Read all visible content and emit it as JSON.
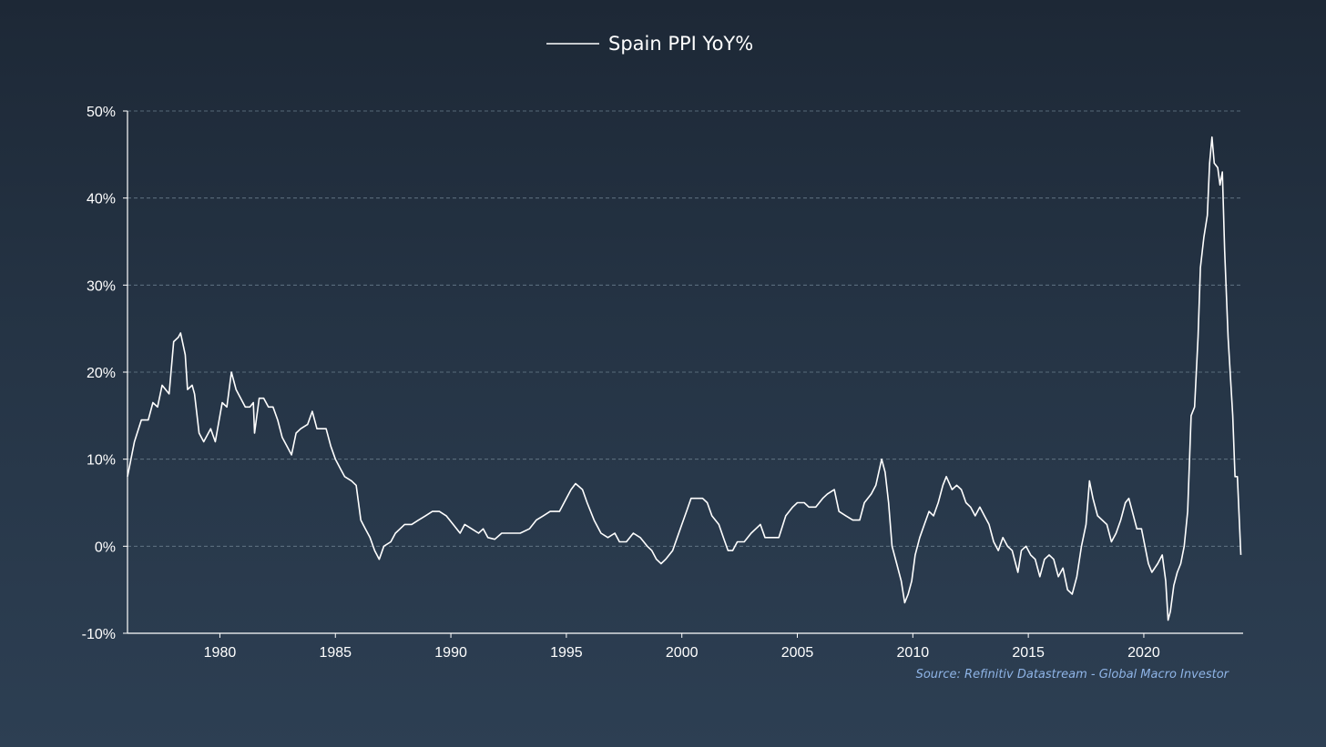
{
  "colors": {
    "line": "#ffffff",
    "grid": "#6a7d8c",
    "axis": "#ffffff",
    "source": "#8fb4e6"
  },
  "legend": {
    "label": "Spain PPI YoY%"
  },
  "source": "Source: Refinitiv Datastream - Global Macro Investor",
  "chart_data": {
    "type": "line",
    "title": "",
    "xlabel": "",
    "ylabel": "",
    "xlim": [
      1976.0,
      2024.3
    ],
    "ylim": [
      -10,
      50
    ],
    "grid": "horizontal-dashed",
    "legend_position": "top-center",
    "x_ticks": [
      {
        "value": 1980,
        "label": "1980"
      },
      {
        "value": 1985,
        "label": "1985"
      },
      {
        "value": 1990,
        "label": "1990"
      },
      {
        "value": 1995,
        "label": "1995"
      },
      {
        "value": 2000,
        "label": "2000"
      },
      {
        "value": 2005,
        "label": "2005"
      },
      {
        "value": 2010,
        "label": "2010"
      },
      {
        "value": 2015,
        "label": "2015"
      },
      {
        "value": 2020,
        "label": "2020"
      }
    ],
    "y_ticks": [
      {
        "value": 50,
        "label": "50%"
      },
      {
        "value": 40,
        "label": "40%"
      },
      {
        "value": 30,
        "label": "30%"
      },
      {
        "value": 20,
        "label": "20%"
      },
      {
        "value": 10,
        "label": "10%"
      },
      {
        "value": 0,
        "label": "0%"
      },
      {
        "value": -10,
        "label": "-10%"
      }
    ],
    "series": [
      {
        "name": "Spain PPI YoY%",
        "points": [
          [
            1976.0,
            8.0
          ],
          [
            1976.3,
            12.0
          ],
          [
            1976.6,
            14.5
          ],
          [
            1976.9,
            14.5
          ],
          [
            1977.1,
            16.5
          ],
          [
            1977.3,
            16.0
          ],
          [
            1977.5,
            18.5
          ],
          [
            1977.8,
            17.5
          ],
          [
            1978.0,
            23.5
          ],
          [
            1978.2,
            24.0
          ],
          [
            1978.3,
            24.5
          ],
          [
            1978.5,
            22.0
          ],
          [
            1978.6,
            18.0
          ],
          [
            1978.8,
            18.5
          ],
          [
            1978.9,
            17.5
          ],
          [
            1979.1,
            13.0
          ],
          [
            1979.3,
            12.0
          ],
          [
            1979.6,
            13.5
          ],
          [
            1979.8,
            12.0
          ],
          [
            1980.1,
            16.5
          ],
          [
            1980.3,
            16.0
          ],
          [
            1980.5,
            20.0
          ],
          [
            1980.7,
            18.0
          ],
          [
            1980.9,
            17.0
          ],
          [
            1981.1,
            16.0
          ],
          [
            1981.3,
            16.0
          ],
          [
            1981.45,
            16.5
          ],
          [
            1981.5,
            13.0
          ],
          [
            1981.7,
            17.0
          ],
          [
            1981.9,
            17.0
          ],
          [
            1982.1,
            16.0
          ],
          [
            1982.3,
            16.0
          ],
          [
            1982.5,
            14.5
          ],
          [
            1982.7,
            12.5
          ],
          [
            1982.9,
            11.5
          ],
          [
            1983.1,
            10.5
          ],
          [
            1983.3,
            13.0
          ],
          [
            1983.5,
            13.5
          ],
          [
            1983.8,
            14.0
          ],
          [
            1984.0,
            15.5
          ],
          [
            1984.2,
            13.5
          ],
          [
            1984.4,
            13.5
          ],
          [
            1984.6,
            13.5
          ],
          [
            1984.8,
            11.5
          ],
          [
            1985.0,
            10.0
          ],
          [
            1985.2,
            9.0
          ],
          [
            1985.4,
            8.0
          ],
          [
            1985.7,
            7.5
          ],
          [
            1985.9,
            7.0
          ],
          [
            1986.1,
            3.0
          ],
          [
            1986.3,
            2.0
          ],
          [
            1986.5,
            1.0
          ],
          [
            1986.7,
            -0.5
          ],
          [
            1986.9,
            -1.5
          ],
          [
            1987.1,
            0.0
          ],
          [
            1987.4,
            0.5
          ],
          [
            1987.6,
            1.5
          ],
          [
            1987.8,
            2.0
          ],
          [
            1988.0,
            2.5
          ],
          [
            1988.3,
            2.5
          ],
          [
            1988.6,
            3.0
          ],
          [
            1988.9,
            3.5
          ],
          [
            1989.2,
            4.0
          ],
          [
            1989.5,
            4.0
          ],
          [
            1989.8,
            3.5
          ],
          [
            1990.1,
            2.5
          ],
          [
            1990.4,
            1.5
          ],
          [
            1990.6,
            2.5
          ],
          [
            1990.9,
            2.0
          ],
          [
            1991.2,
            1.5
          ],
          [
            1991.4,
            2.0
          ],
          [
            1991.6,
            1.0
          ],
          [
            1991.9,
            0.8
          ],
          [
            1992.2,
            1.5
          ],
          [
            1992.6,
            1.5
          ],
          [
            1993.0,
            1.5
          ],
          [
            1993.4,
            2.0
          ],
          [
            1993.7,
            3.0
          ],
          [
            1994.0,
            3.5
          ],
          [
            1994.3,
            4.0
          ],
          [
            1994.7,
            4.0
          ],
          [
            1995.0,
            5.5
          ],
          [
            1995.2,
            6.5
          ],
          [
            1995.4,
            7.2
          ],
          [
            1995.7,
            6.5
          ],
          [
            1995.9,
            5.0
          ],
          [
            1996.2,
            3.0
          ],
          [
            1996.5,
            1.5
          ],
          [
            1996.8,
            1.0
          ],
          [
            1997.1,
            1.5
          ],
          [
            1997.3,
            0.5
          ],
          [
            1997.6,
            0.5
          ],
          [
            1997.9,
            1.5
          ],
          [
            1998.2,
            1.0
          ],
          [
            1998.5,
            0.0
          ],
          [
            1998.7,
            -0.5
          ],
          [
            1998.9,
            -1.5
          ],
          [
            1999.1,
            -2.0
          ],
          [
            1999.3,
            -1.5
          ],
          [
            1999.6,
            -0.5
          ],
          [
            1999.8,
            1.0
          ],
          [
            2000.0,
            2.5
          ],
          [
            2000.2,
            4.0
          ],
          [
            2000.4,
            5.5
          ],
          [
            2000.7,
            5.5
          ],
          [
            2000.9,
            5.5
          ],
          [
            2001.1,
            5.0
          ],
          [
            2001.3,
            3.5
          ],
          [
            2001.6,
            2.5
          ],
          [
            2001.8,
            1.0
          ],
          [
            2002.0,
            -0.5
          ],
          [
            2002.2,
            -0.5
          ],
          [
            2002.4,
            0.5
          ],
          [
            2002.7,
            0.5
          ],
          [
            2003.0,
            1.5
          ],
          [
            2003.2,
            2.0
          ],
          [
            2003.4,
            2.5
          ],
          [
            2003.6,
            1.0
          ],
          [
            2003.9,
            1.0
          ],
          [
            2004.2,
            1.0
          ],
          [
            2004.5,
            3.5
          ],
          [
            2004.8,
            4.5
          ],
          [
            2005.0,
            5.0
          ],
          [
            2005.3,
            5.0
          ],
          [
            2005.5,
            4.5
          ],
          [
            2005.8,
            4.5
          ],
          [
            2006.1,
            5.5
          ],
          [
            2006.3,
            6.0
          ],
          [
            2006.6,
            6.5
          ],
          [
            2006.8,
            4.0
          ],
          [
            2007.1,
            3.5
          ],
          [
            2007.4,
            3.0
          ],
          [
            2007.7,
            3.0
          ],
          [
            2007.9,
            5.0
          ],
          [
            2008.2,
            6.0
          ],
          [
            2008.4,
            7.0
          ],
          [
            2008.65,
            10.0
          ],
          [
            2008.8,
            8.5
          ],
          [
            2008.95,
            5.0
          ],
          [
            2009.1,
            0.0
          ],
          [
            2009.3,
            -2.0
          ],
          [
            2009.5,
            -4.0
          ],
          [
            2009.65,
            -6.5
          ],
          [
            2009.8,
            -5.5
          ],
          [
            2009.95,
            -4.0
          ],
          [
            2010.1,
            -1.0
          ],
          [
            2010.3,
            1.0
          ],
          [
            2010.5,
            2.5
          ],
          [
            2010.7,
            4.0
          ],
          [
            2010.9,
            3.5
          ],
          [
            2011.1,
            5.0
          ],
          [
            2011.3,
            7.0
          ],
          [
            2011.45,
            8.0
          ],
          [
            2011.7,
            6.5
          ],
          [
            2011.9,
            7.0
          ],
          [
            2012.1,
            6.5
          ],
          [
            2012.3,
            5.0
          ],
          [
            2012.5,
            4.5
          ],
          [
            2012.7,
            3.5
          ],
          [
            2012.9,
            4.5
          ],
          [
            2013.1,
            3.5
          ],
          [
            2013.3,
            2.5
          ],
          [
            2013.5,
            0.5
          ],
          [
            2013.7,
            -0.5
          ],
          [
            2013.9,
            1.0
          ],
          [
            2014.1,
            0.0
          ],
          [
            2014.3,
            -0.5
          ],
          [
            2014.55,
            -3.0
          ],
          [
            2014.7,
            -0.5
          ],
          [
            2014.9,
            0.0
          ],
          [
            2015.1,
            -1.0
          ],
          [
            2015.3,
            -1.5
          ],
          [
            2015.5,
            -3.5
          ],
          [
            2015.7,
            -1.5
          ],
          [
            2015.9,
            -1.0
          ],
          [
            2016.1,
            -1.5
          ],
          [
            2016.3,
            -3.5
          ],
          [
            2016.5,
            -2.5
          ],
          [
            2016.7,
            -5.0
          ],
          [
            2016.9,
            -5.5
          ],
          [
            2017.1,
            -3.5
          ],
          [
            2017.3,
            0.0
          ],
          [
            2017.5,
            2.5
          ],
          [
            2017.65,
            7.5
          ],
          [
            2017.8,
            5.5
          ],
          [
            2018.0,
            3.5
          ],
          [
            2018.2,
            3.0
          ],
          [
            2018.4,
            2.5
          ],
          [
            2018.6,
            0.5
          ],
          [
            2018.8,
            1.5
          ],
          [
            2019.0,
            3.0
          ],
          [
            2019.2,
            5.0
          ],
          [
            2019.35,
            5.5
          ],
          [
            2019.5,
            4.0
          ],
          [
            2019.7,
            2.0
          ],
          [
            2019.9,
            2.0
          ],
          [
            2020.05,
            0.0
          ],
          [
            2020.2,
            -2.0
          ],
          [
            2020.35,
            -3.0
          ],
          [
            2020.6,
            -2.0
          ],
          [
            2020.8,
            -1.0
          ],
          [
            2020.95,
            -4.0
          ],
          [
            2021.05,
            -8.5
          ],
          [
            2021.15,
            -7.5
          ],
          [
            2021.3,
            -4.5
          ],
          [
            2021.45,
            -3.0
          ],
          [
            2021.6,
            -2.0
          ],
          [
            2021.75,
            0.0
          ],
          [
            2021.9,
            4.0
          ],
          [
            2022.05,
            15.0
          ],
          [
            2022.2,
            16.0
          ],
          [
            2022.35,
            24.0
          ],
          [
            2022.45,
            32.0
          ],
          [
            2022.6,
            35.5
          ],
          [
            2022.75,
            38.0
          ],
          [
            2022.85,
            44.0
          ],
          [
            2022.95,
            47.0
          ],
          [
            2023.05,
            44.0
          ],
          [
            2023.2,
            43.5
          ],
          [
            2023.3,
            41.5
          ],
          [
            2023.4,
            43.0
          ],
          [
            2023.5,
            34.0
          ],
          [
            2023.65,
            24.0
          ],
          [
            2023.85,
            15.0
          ],
          [
            2023.95,
            8.0
          ],
          [
            2024.05,
            8.0
          ],
          [
            2024.2,
            -1.0
          ]
        ]
      }
    ]
  }
}
